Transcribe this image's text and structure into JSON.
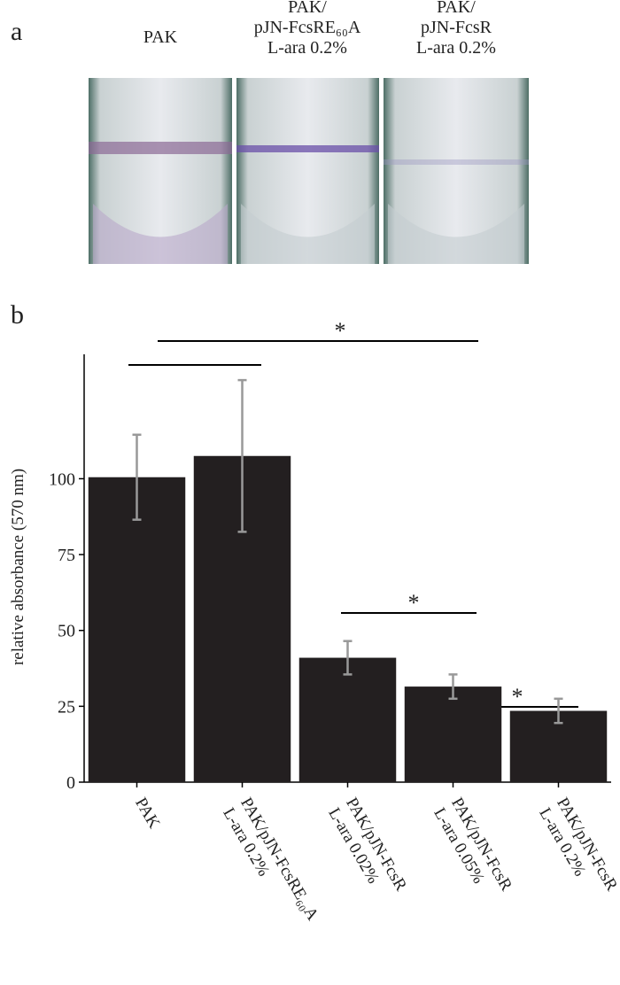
{
  "panel_a": {
    "label": "a",
    "tube_labels": [
      [
        "PAK"
      ],
      [
        "PAK/",
        "pJN-FcsRE₆₀A",
        "L-ara 0.2%"
      ],
      [
        "PAK/",
        "pJN-FcsR",
        "L-ara 0.2%"
      ]
    ]
  },
  "chart_data": {
    "type": "bar",
    "panel_label": "b",
    "ylabel": "relative absorbance (570 nm)",
    "categories": [
      [
        "PAK"
      ],
      [
        "PAK/pJN-FcsRE₆₀A",
        "L-ara 0.2%"
      ],
      [
        "PAK/pJN-FcsR",
        "L-ara 0.02%"
      ],
      [
        "PAK/pJN-FcsR",
        "L-ara 0.05%"
      ],
      [
        "PAK/pJN-FcsR",
        "L-ara 0.2%"
      ]
    ],
    "values": [
      100.5,
      107.5,
      41,
      31.5,
      23.5
    ],
    "errors": [
      14,
      25,
      5.5,
      4,
      4
    ],
    "color": "#231f20",
    "error_color": "#999999",
    "ylim": [
      0,
      141
    ],
    "yticks": [
      0,
      25,
      50,
      75,
      100
    ],
    "annotations": [
      "*",
      "*",
      "*"
    ]
  }
}
